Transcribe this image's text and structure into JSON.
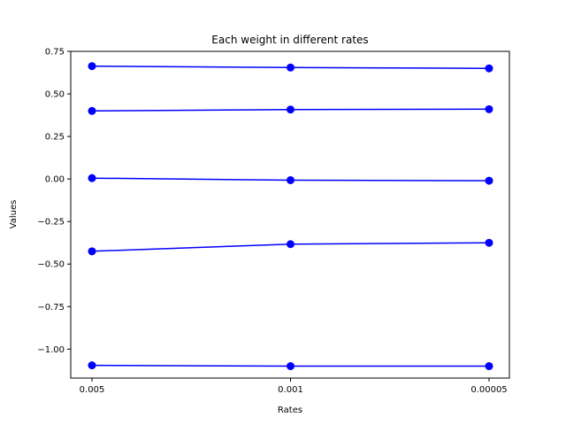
{
  "chart_data": {
    "type": "line",
    "title": "Each weight in different rates",
    "xlabel": "Rates",
    "ylabel": "Values",
    "categories": [
      "0.005",
      "0.001",
      "0.00005"
    ],
    "ylim": [
      -1.17,
      0.75
    ],
    "yticks": [
      0.75,
      0.5,
      0.25,
      0.0,
      -0.25,
      -0.5,
      -0.75,
      -1.0
    ],
    "ytick_labels": [
      "0.75",
      "0.50",
      "0.25",
      "0.00",
      "−0.25",
      "−0.50",
      "−0.75",
      "−1.00"
    ],
    "grid": false,
    "color": "#0000ff",
    "marker": "circle",
    "series": [
      {
        "values": [
          0.663,
          0.655,
          0.65
        ]
      },
      {
        "values": [
          0.4,
          0.408,
          0.41
        ]
      },
      {
        "values": [
          0.005,
          -0.007,
          -0.01
        ]
      },
      {
        "values": [
          -0.425,
          -0.383,
          -0.375
        ]
      },
      {
        "values": [
          -1.095,
          -1.1,
          -1.1
        ]
      }
    ]
  }
}
